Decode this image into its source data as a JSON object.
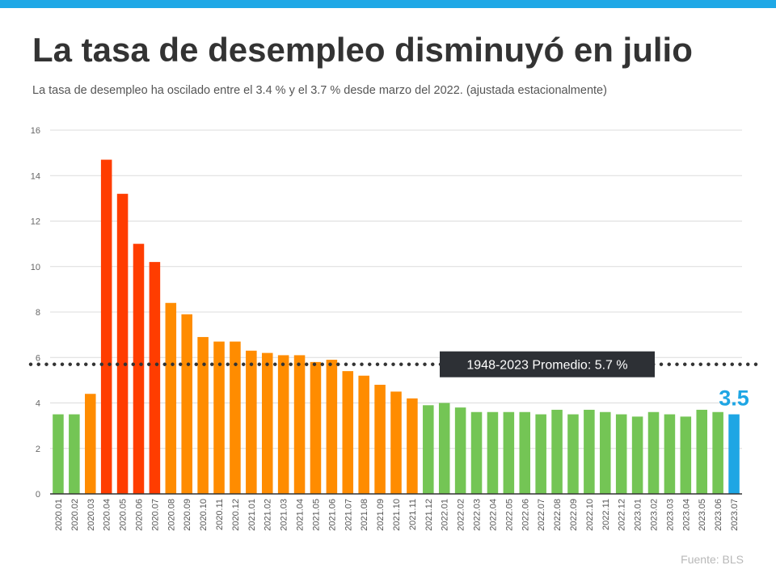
{
  "title": "La tasa de desempleo disminuyó en julio",
  "subtitle": "La tasa de desempleo  ha oscilado entre  el 3.4 % y el 3.7 % desde  marzo del 2022.  (ajustada  estacionalmente)",
  "source": "Fuente:  BLS",
  "colors": {
    "accent_bar": "#1fa8e6",
    "red": "#ff3d00",
    "orange": "#ff8c00",
    "green": "#74c555",
    "highlight": "#1ea6e4",
    "average_line": "#333333",
    "average_box": "#2d3035"
  },
  "chart_data": {
    "type": "bar",
    "title": "La tasa de desempleo disminuyó en julio",
    "xlabel": "",
    "ylabel": "",
    "ylim": [
      0,
      16
    ],
    "yticks": [
      0,
      2,
      4,
      6,
      8,
      10,
      12,
      14,
      16
    ],
    "grid": true,
    "categories": [
      "2020.01",
      "2020.02",
      "2020.03",
      "2020.04",
      "2020.05",
      "2020.06",
      "2020.07",
      "2020.08",
      "2020.09",
      "2020.10",
      "2020.11",
      "2020.12",
      "2021.01",
      "2021.02",
      "2021.03",
      "2021.04",
      "2021.05",
      "2021.06",
      "2021.07",
      "2021.08",
      "2021.09",
      "2021.10",
      "2021.11",
      "2021.12",
      "2022.01",
      "2022.02",
      "2022.03",
      "2022.04",
      "2022.05",
      "2022.06",
      "2022.07",
      "2022.08",
      "2022.09",
      "2022.10",
      "2022.11",
      "2022.12",
      "2023.01",
      "2023.02",
      "2023.03",
      "2023.04",
      "2023.05",
      "2023.06",
      "2023.07"
    ],
    "values": [
      3.5,
      3.5,
      4.4,
      14.7,
      13.2,
      11.0,
      10.2,
      8.4,
      7.9,
      6.9,
      6.7,
      6.7,
      6.3,
      6.2,
      6.1,
      6.1,
      5.8,
      5.9,
      5.4,
      5.2,
      4.8,
      4.5,
      4.2,
      3.9,
      4.0,
      3.8,
      3.6,
      3.6,
      3.6,
      3.6,
      3.5,
      3.7,
      3.5,
      3.7,
      3.6,
      3.5,
      3.4,
      3.6,
      3.5,
      3.4,
      3.7,
      3.6,
      3.5
    ],
    "bar_colors": [
      "green",
      "green",
      "orange",
      "red",
      "red",
      "red",
      "red",
      "orange",
      "orange",
      "orange",
      "orange",
      "orange",
      "orange",
      "orange",
      "orange",
      "orange",
      "orange",
      "orange",
      "orange",
      "orange",
      "orange",
      "orange",
      "orange",
      "green",
      "green",
      "green",
      "green",
      "green",
      "green",
      "green",
      "green",
      "green",
      "green",
      "green",
      "green",
      "green",
      "green",
      "green",
      "green",
      "green",
      "green",
      "green",
      "highlight"
    ],
    "reference_line": {
      "value": 5.7,
      "label": "1948-2023 Promedio: 5.7 %",
      "style": "dotted"
    },
    "callout": {
      "category": "2023.07",
      "label": "3.5"
    }
  }
}
